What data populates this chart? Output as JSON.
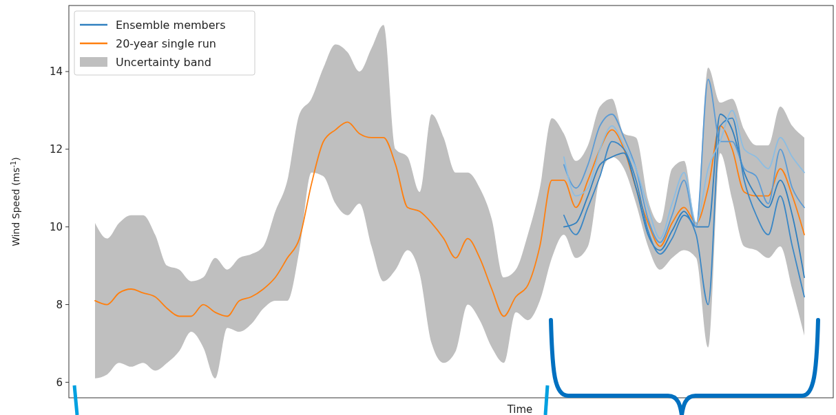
{
  "chart_data": {
    "type": "line",
    "xlabel": "Time",
    "ylabel": "Wind Speed (ms$^{-1}$)",
    "categories": [
      null,
      null,
      null,
      null,
      null,
      null,
      null,
      null,
      null,
      null,
      null,
      null,
      null,
      null,
      null,
      null,
      null,
      null,
      null,
      null,
      null,
      null,
      null,
      null,
      null,
      null,
      null,
      null,
      null,
      null,
      null,
      null,
      null,
      null,
      null,
      null,
      null,
      null,
      null,
      null,
      null,
      null,
      null,
      null,
      null,
      null,
      null,
      null,
      null,
      null,
      null,
      null,
      null,
      null,
      null,
      null,
      null,
      null,
      null,
      null
    ],
    "ylim": [
      5.6,
      15.7
    ],
    "yticks": [
      6,
      8,
      10,
      12,
      14
    ],
    "grid": false,
    "legend": "top left",
    "annotations": [
      "Uncertainty band"
    ],
    "series": [
      {
        "name": "20-year single run",
        "color": "#ff7f0e",
        "values": [
          8.1,
          8.0,
          8.3,
          8.4,
          8.3,
          8.2,
          7.9,
          7.7,
          7.7,
          8.0,
          7.8,
          7.7,
          8.1,
          8.2,
          8.4,
          8.7,
          9.2,
          9.7,
          11.1,
          12.2,
          12.5,
          12.7,
          12.4,
          12.3,
          12.3,
          11.6,
          10.5,
          10.4,
          10.1,
          9.7,
          9.2,
          9.7,
          9.2,
          8.4,
          7.7,
          8.2,
          8.5,
          9.5,
          11.2,
          11.2,
          10.5,
          11.2,
          12.0,
          12.5,
          12.0,
          11.0,
          10.1,
          9.5,
          10.1,
          10.5,
          10.1,
          11.0,
          12.6,
          12.0,
          10.9,
          10.8,
          10.8,
          11.5,
          10.8,
          9.8
        ],
        "lower": [
          6.1,
          6.2,
          6.5,
          6.4,
          6.5,
          6.3,
          6.5,
          6.8,
          7.3,
          6.9,
          6.1,
          7.4,
          7.3,
          7.5,
          7.9,
          8.1,
          8.1,
          9.4,
          11.4,
          11.3,
          10.6,
          10.3,
          10.6,
          9.5,
          8.6,
          8.9,
          9.4,
          8.8,
          7.0,
          6.5,
          6.8,
          8.0,
          7.6,
          6.9,
          6.5,
          7.8,
          7.6,
          8.1,
          9.2,
          9.8,
          9.2,
          9.5,
          11.3,
          11.8,
          11.5,
          10.6,
          9.5,
          8.9,
          9.2,
          9.4,
          9.2,
          6.9,
          11.9,
          10.7,
          9.5,
          9.4,
          9.2,
          9.5,
          8.4,
          7.2
        ],
        "upper": [
          10.1,
          9.7,
          10.1,
          10.3,
          10.3,
          9.8,
          9.0,
          8.9,
          8.6,
          8.7,
          9.2,
          8.9,
          9.2,
          9.3,
          9.5,
          10.4,
          11.2,
          12.9,
          13.3,
          14.1,
          14.7,
          14.5,
          14.0,
          14.6,
          15.2,
          12.0,
          11.8,
          10.9,
          12.9,
          12.3,
          11.4,
          11.4,
          11.0,
          10.2,
          8.7,
          8.9,
          9.8,
          11.0,
          12.8,
          12.4,
          11.7,
          12.1,
          13.1,
          13.3,
          12.4,
          12.3,
          10.7,
          10.1,
          11.5,
          11.7,
          10.1,
          14.1,
          13.2,
          13.3,
          12.5,
          12.1,
          12.1,
          13.1,
          12.6,
          12.3
        ]
      },
      {
        "name": "Ensemble members",
        "color": "#2f7fbf",
        "values": [
          null,
          null,
          null,
          null,
          null,
          null,
          null,
          null,
          null,
          null,
          null,
          null,
          null,
          null,
          null,
          null,
          null,
          null,
          null,
          null,
          null,
          null,
          null,
          null,
          null,
          null,
          null,
          null,
          null,
          null,
          null,
          null,
          null,
          null,
          null,
          null,
          null,
          null,
          null,
          10.0,
          10.1,
          10.8,
          11.6,
          11.8,
          11.9,
          11.0,
          9.8,
          9.4,
          9.9,
          10.4,
          10.0,
          10.0,
          12.9,
          12.5,
          11.4,
          10.8,
          10.5,
          11.2,
          10.3,
          8.7
        ]
      },
      {
        "color": "#5b9bd5",
        "values": [
          null,
          null,
          null,
          null,
          null,
          null,
          null,
          null,
          null,
          null,
          null,
          null,
          null,
          null,
          null,
          null,
          null,
          null,
          null,
          null,
          null,
          null,
          null,
          null,
          null,
          null,
          null,
          null,
          null,
          null,
          null,
          null,
          null,
          null,
          null,
          null,
          null,
          null,
          null,
          11.6,
          11.0,
          11.6,
          12.6,
          12.9,
          12.3,
          11.5,
          10.2,
          9.6,
          10.3,
          11.2,
          10.0,
          13.8,
          12.2,
          12.2,
          11.5,
          11.3,
          10.6,
          12.0,
          11.0,
          10.5
        ]
      },
      {
        "color": "#3a87c6",
        "values": [
          null,
          null,
          null,
          null,
          null,
          null,
          null,
          null,
          null,
          null,
          null,
          null,
          null,
          null,
          null,
          null,
          null,
          null,
          null,
          null,
          null,
          null,
          null,
          null,
          null,
          null,
          null,
          null,
          null,
          null,
          null,
          null,
          null,
          null,
          null,
          null,
          null,
          null,
          null,
          10.3,
          9.8,
          10.5,
          11.3,
          12.2,
          12.0,
          11.2,
          9.9,
          9.3,
          9.7,
          10.3,
          9.8,
          8.0,
          12.6,
          12.8,
          11.2,
          10.3,
          9.8,
          10.8,
          9.5,
          8.2
        ]
      },
      {
        "color": "#8bbde3",
        "values": [
          null,
          null,
          null,
          null,
          null,
          null,
          null,
          null,
          null,
          null,
          null,
          null,
          null,
          null,
          null,
          null,
          null,
          null,
          null,
          null,
          null,
          null,
          null,
          null,
          null,
          null,
          null,
          null,
          null,
          null,
          null,
          null,
          null,
          null,
          null,
          null,
          null,
          null,
          null,
          11.8,
          10.8,
          11.0,
          12.0,
          12.6,
          12.1,
          11.5,
          10.5,
          9.7,
          10.6,
          11.4,
          10.1,
          11.5,
          12.2,
          13.0,
          12.0,
          11.8,
          11.5,
          12.3,
          11.8,
          11.4
        ]
      }
    ]
  }
}
